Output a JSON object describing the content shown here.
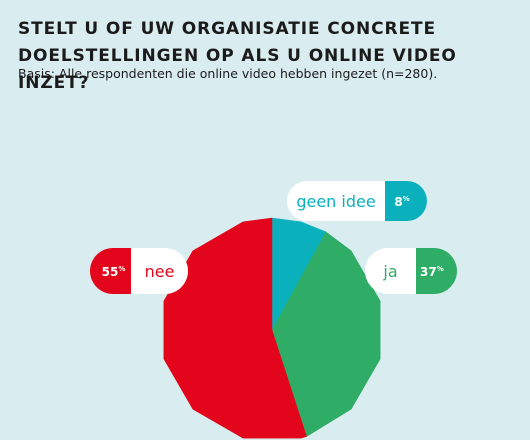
{
  "header": {
    "title": "STELT U OF UW ORGANISATIE CONCRETE DOELSTELLINGEN OP ALS U ONLINE VIDEO INZET?",
    "subtitle": "Basis: Alle respondenten die online video hebben ingezet (n=280)."
  },
  "chart_data": {
    "type": "pie",
    "slices": [
      {
        "label": "geen idee",
        "value": 8,
        "display": "8",
        "unit": "%",
        "color": "#0ab1bd"
      },
      {
        "label": "ja",
        "value": 37,
        "display": "37",
        "unit": "%",
        "color": "#2fac66"
      },
      {
        "label": "nee",
        "value": 55,
        "display": "55",
        "unit": "%",
        "color": "#e3051b"
      }
    ]
  }
}
